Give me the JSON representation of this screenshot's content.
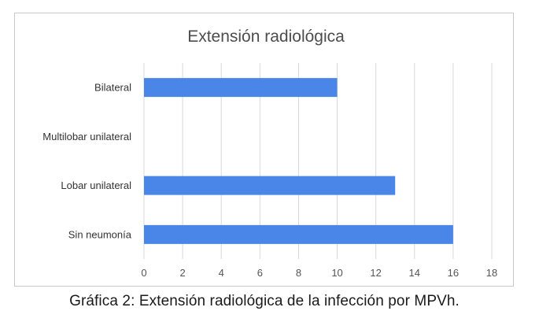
{
  "caption": "Gráfica 2: Extensión radiológica de la infección por MPVh.",
  "chart_data": {
    "type": "bar",
    "orientation": "horizontal",
    "title": "Extensión radiológica",
    "categories": [
      "Bilateral",
      "Multilobar unilateral",
      "Lobar unilateral",
      "Sin neumonía"
    ],
    "values": [
      10,
      0,
      13,
      16
    ],
    "xlim": [
      0,
      18
    ],
    "x_ticks": [
      0,
      2,
      4,
      6,
      8,
      10,
      12,
      14,
      16,
      18
    ],
    "grid": "vertical",
    "bar_color": "#4a86e8"
  }
}
